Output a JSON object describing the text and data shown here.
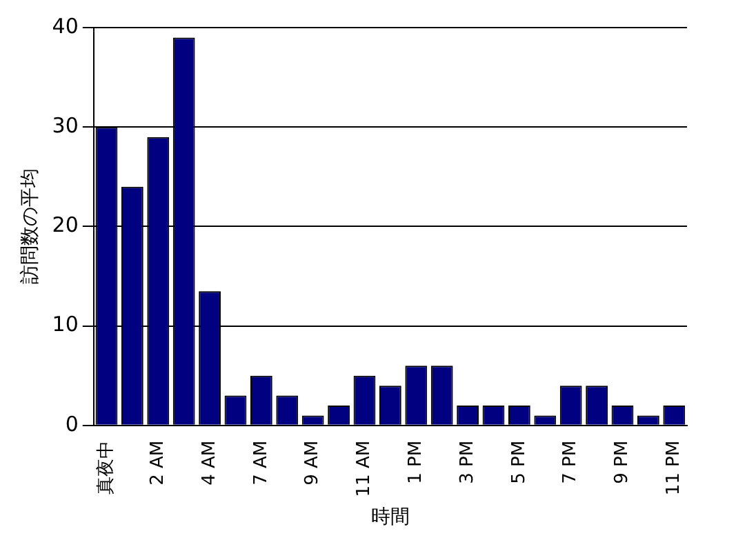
{
  "chart_data": {
    "type": "bar",
    "xlabel": "時間",
    "ylabel": "訪問数の平均",
    "categories": [
      "真夜中",
      null,
      "2 AM",
      null,
      "4 AM",
      null,
      "7 AM",
      null,
      "9 AM",
      null,
      "11 AM",
      null,
      "1 PM",
      null,
      "3 PM",
      null,
      "5 PM",
      null,
      "7 PM",
      null,
      "9 PM",
      null,
      "11 PM"
    ],
    "values": [
      30,
      24,
      29,
      39,
      13.5,
      3,
      5,
      3,
      1,
      2,
      5,
      4,
      6,
      6,
      2,
      2,
      2,
      1,
      4,
      4,
      2,
      1,
      2
    ],
    "color": "#000080",
    "ylim": [
      0,
      40
    ],
    "yticks": [
      0,
      10,
      20,
      30,
      40
    ],
    "grid": "y",
    "legend": false
  }
}
